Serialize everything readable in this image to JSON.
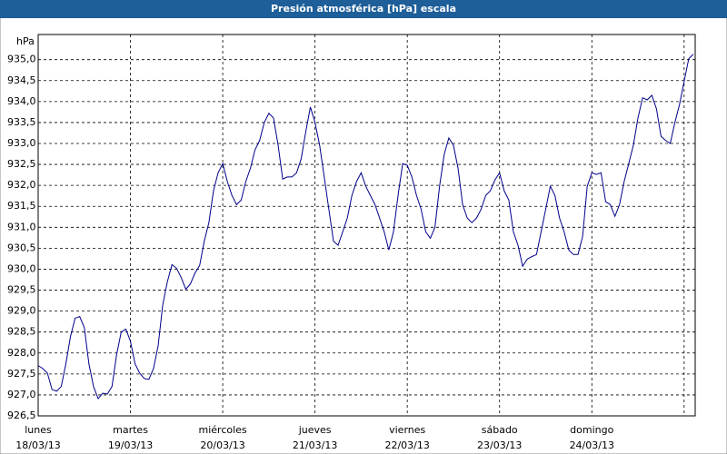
{
  "chart_data": {
    "type": "line",
    "title": "Presión atmosférica [hPa] escala",
    "y_unit": "hPa",
    "xlim": [
      0,
      7.12
    ],
    "ylim": [
      926.5,
      935.6
    ],
    "grid": true,
    "xticks": [
      {
        "value": 0,
        "label": "lunes",
        "sublabel": "18/03/13"
      },
      {
        "value": 1,
        "label": "martes",
        "sublabel": "19/03/13"
      },
      {
        "value": 2,
        "label": "miércoles",
        "sublabel": "20/03/13"
      },
      {
        "value": 3,
        "label": "jueves",
        "sublabel": "21/03/13"
      },
      {
        "value": 4,
        "label": "viernes",
        "sublabel": "22/03/13"
      },
      {
        "value": 5,
        "label": "sábado",
        "sublabel": "23/03/13"
      },
      {
        "value": 6,
        "label": "domingo",
        "sublabel": "24/03/13"
      },
      {
        "value": 7,
        "label": null
      }
    ],
    "yticks": [
      {
        "value": 926.5,
        "label": "926,5"
      },
      {
        "value": 927,
        "label": "927,0"
      },
      {
        "value": 927.5,
        "label": "927,5"
      },
      {
        "value": 928,
        "label": "928,0"
      },
      {
        "value": 928.5,
        "label": "928,5"
      },
      {
        "value": 929,
        "label": "929,0"
      },
      {
        "value": 929.5,
        "label": "929,5"
      },
      {
        "value": 930,
        "label": "930,0"
      },
      {
        "value": 930.5,
        "label": "930,5"
      },
      {
        "value": 931,
        "label": "931,0"
      },
      {
        "value": 931.5,
        "label": "931,5"
      },
      {
        "value": 932,
        "label": "932,0"
      },
      {
        "value": 932.5,
        "label": "932,5"
      },
      {
        "value": 933,
        "label": "933,0"
      },
      {
        "value": 933.5,
        "label": "933,5"
      },
      {
        "value": 934,
        "label": "934,0"
      },
      {
        "value": 934.5,
        "label": "934,5"
      },
      {
        "value": 935,
        "label": "935,0"
      }
    ],
    "x": [
      0,
      0.05,
      0.1,
      0.15,
      0.2,
      0.25,
      0.3,
      0.35,
      0.4,
      0.45,
      0.5,
      0.55,
      0.6,
      0.65,
      0.7,
      0.75,
      0.8,
      0.85,
      0.9,
      0.95,
      1,
      1.05,
      1.1,
      1.15,
      1.2,
      1.25,
      1.3,
      1.35,
      1.4,
      1.45,
      1.5,
      1.55,
      1.6,
      1.65,
      1.7,
      1.75,
      1.8,
      1.85,
      1.9,
      1.95,
      2,
      2.05,
      2.1,
      2.15,
      2.2,
      2.25,
      2.3,
      2.35,
      2.4,
      2.45,
      2.5,
      2.55,
      2.6,
      2.65,
      2.7,
      2.75,
      2.8,
      2.85,
      2.9,
      2.95,
      3,
      3.05,
      3.1,
      3.15,
      3.2,
      3.25,
      3.3,
      3.35,
      3.4,
      3.45,
      3.5,
      3.55,
      3.6,
      3.65,
      3.7,
      3.75,
      3.8,
      3.85,
      3.9,
      3.95,
      4,
      4.05,
      4.1,
      4.15,
      4.2,
      4.25,
      4.3,
      4.35,
      4.4,
      4.45,
      4.5,
      4.55,
      4.6,
      4.65,
      4.7,
      4.75,
      4.8,
      4.85,
      4.9,
      4.95,
      5,
      5.05,
      5.1,
      5.15,
      5.2,
      5.25,
      5.3,
      5.35,
      5.4,
      5.45,
      5.5,
      5.55,
      5.6,
      5.65,
      5.7,
      5.75,
      5.8,
      5.85,
      5.9,
      5.95,
      6,
      6.05,
      6.1,
      6.15,
      6.2,
      6.25,
      6.3,
      6.35,
      6.4,
      6.45,
      6.5,
      6.55,
      6.6,
      6.65,
      6.7,
      6.75,
      6.8,
      6.85,
      6.9,
      6.95,
      7,
      7.05,
      7.1
    ],
    "series": [
      {
        "name": "Presión atmosférica",
        "color": "#00008b",
        "values": [
          927.7,
          927.63,
          927.52,
          927.13,
          927.09,
          927.2,
          927.74,
          928.39,
          928.83,
          928.87,
          928.61,
          927.74,
          927.2,
          926.91,
          927.04,
          927.02,
          927.2,
          927.96,
          928.5,
          928.57,
          928.28,
          927.74,
          927.52,
          927.39,
          927.37,
          927.63,
          928.17,
          929.15,
          929.7,
          930.11,
          930.02,
          929.8,
          929.52,
          929.65,
          929.91,
          930.09,
          930.67,
          931.11,
          931.87,
          932.3,
          932.52,
          932.09,
          931.76,
          931.54,
          931.65,
          932.09,
          932.41,
          932.85,
          933.07,
          933.5,
          933.72,
          933.61,
          932.96,
          932.15,
          932.2,
          932.2,
          932.3,
          932.63,
          933.28,
          933.87,
          933.5,
          932.96,
          932.2,
          931.43,
          930.67,
          930.57,
          930.89,
          931.22,
          931.76,
          932.09,
          932.3,
          931.98,
          931.76,
          931.54,
          931.22,
          930.89,
          930.46,
          930.89,
          931.76,
          932.52,
          932.48,
          932.2,
          931.76,
          931.43,
          930.89,
          930.74,
          931.0,
          931.98,
          932.74,
          933.13,
          932.96,
          932.41,
          931.54,
          931.22,
          931.11,
          931.22,
          931.43,
          931.76,
          931.87,
          932.13,
          932.3,
          931.87,
          931.65,
          930.89,
          930.57,
          930.07,
          930.24,
          930.3,
          930.35,
          930.89,
          931.43,
          931.98,
          931.76,
          931.22,
          930.89,
          930.46,
          930.35,
          930.35,
          930.78,
          931.98,
          932.3,
          932.26,
          932.3,
          931.61,
          931.54,
          931.26,
          931.54,
          932.09,
          932.52,
          932.96,
          933.61,
          934.09,
          934.04,
          934.15,
          933.83,
          933.17,
          933.07,
          933.0,
          933.5,
          933.93,
          934.48,
          935.02,
          935.13
        ]
      }
    ]
  }
}
